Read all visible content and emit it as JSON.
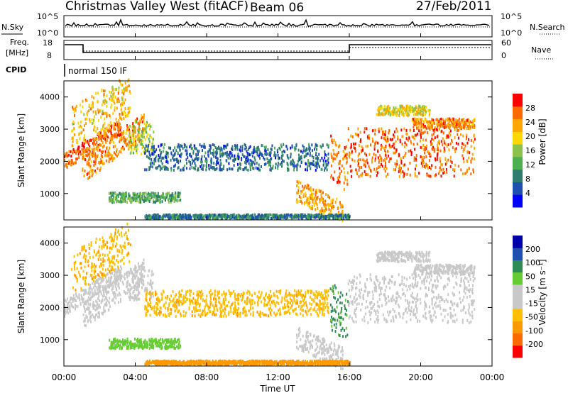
{
  "header": {
    "station": "Christmas Valley West (fitACF)",
    "beam": "Beam 06",
    "date": "27/Feb/2011"
  },
  "top_panel": {
    "left_label": "N.Sky",
    "right_label": "N.Search",
    "left_ticks": [
      "10^5",
      "10^0"
    ],
    "right_ticks": [
      "10^5",
      "10^0"
    ]
  },
  "freq_panel": {
    "left_label_1": "Freq.",
    "left_label_2": "[MHz]",
    "right_label": "Nave",
    "left_ticks": [
      "18",
      "8"
    ],
    "right_ticks": [
      "60",
      "0"
    ]
  },
  "cpid": {
    "label": "CPID",
    "mode": "normal 150 IF"
  },
  "colors": {
    "power": [
      "#0000ff",
      "#1f4fb0",
      "#2e7d6f",
      "#4caf50",
      "#8bc34a",
      "#ffd700",
      "#ffa500",
      "#ff6a00",
      "#ff0000"
    ],
    "velocity": [
      "#ff0000",
      "#ff6a00",
      "#ff9900",
      "#ffbf00",
      "#c8c8c8",
      "#c8c8c8",
      "#66cc33",
      "#2e8b57",
      "#1f4fb0",
      "#0000aa"
    ],
    "ground_scatter": "#c8c8c8"
  },
  "chart_data": [
    {
      "type": "heatmap",
      "name": "power",
      "ylabel": "Slant Range [km]",
      "colorbar_label": "Power [dB]",
      "colorbar_ticks": [
        "28",
        "24",
        "20",
        "16",
        "12",
        "8",
        "4"
      ],
      "xlim": [
        "00:00",
        "24:00"
      ],
      "ylim": [
        180,
        4500
      ],
      "yticks": [
        "1000",
        "2000",
        "3000",
        "4000"
      ],
      "regions": [
        {
          "t0": 0.0,
          "t1": 3.2,
          "r0": 1700,
          "r1": 2200,
          "slope": 350,
          "value": 30
        },
        {
          "t0": 0.4,
          "t1": 3.7,
          "r0": 2400,
          "r1": 3700,
          "slope": 300,
          "value": 24
        },
        {
          "t0": 1.0,
          "t1": 4.5,
          "r0": 1300,
          "r1": 2100,
          "slope": 400,
          "value": 28
        },
        {
          "t0": 3.6,
          "t1": 5.0,
          "r0": 2200,
          "r1": 3200,
          "slope": 0,
          "value": 18
        },
        {
          "t0": 4.5,
          "t1": 14.8,
          "r0": 1700,
          "r1": 2500,
          "slope": 0,
          "value": 8
        },
        {
          "t0": 13.0,
          "t1": 15.6,
          "r0": 700,
          "r1": 1400,
          "slope": -250,
          "value": 26
        },
        {
          "t0": 14.9,
          "t1": 15.9,
          "r0": 1300,
          "r1": 2800,
          "slope": -400,
          "value": 28
        },
        {
          "t0": 15.9,
          "t1": 23.0,
          "r0": 1500,
          "r1": 3000,
          "slope": 0,
          "value": 30
        },
        {
          "t0": 19.5,
          "t1": 23.0,
          "r0": 3000,
          "r1": 3300,
          "slope": 0,
          "value": 28
        },
        {
          "t0": 17.5,
          "t1": 20.5,
          "r0": 3400,
          "r1": 3700,
          "slope": 0,
          "value": 22
        },
        {
          "t0": 2.5,
          "t1": 6.5,
          "r0": 700,
          "r1": 1000,
          "slope": 0,
          "value": 14
        },
        {
          "t0": 4.5,
          "t1": 16.0,
          "r0": 200,
          "r1": 320,
          "slope": 0,
          "value": 10
        }
      ]
    },
    {
      "type": "heatmap",
      "name": "velocity",
      "ylabel": "Slant Range [km]",
      "colorbar_label": "Velocity [m s⁻¹]",
      "colorbar_ticks": [
        "200",
        "100",
        "50",
        "15",
        "-15",
        "-50",
        "-100",
        "-200"
      ],
      "xlim": [
        "00:00",
        "24:00"
      ],
      "ylim": [
        180,
        4500
      ],
      "yticks": [
        "1000",
        "2000",
        "3000",
        "4000"
      ],
      "regions": [
        {
          "t0": 0.0,
          "t1": 3.2,
          "r0": 1700,
          "r1": 2200,
          "slope": 350,
          "value": 0
        },
        {
          "t0": 0.4,
          "t1": 3.7,
          "r0": 2400,
          "r1": 3700,
          "slope": 300,
          "value": -40
        },
        {
          "t0": 1.0,
          "t1": 4.5,
          "r0": 1300,
          "r1": 2100,
          "slope": 400,
          "value": 0
        },
        {
          "t0": 3.6,
          "t1": 5.0,
          "r0": 2200,
          "r1": 3200,
          "slope": 0,
          "value": 0
        },
        {
          "t0": 4.5,
          "t1": 14.8,
          "r0": 1700,
          "r1": 2500,
          "slope": 0,
          "value": -40
        },
        {
          "t0": 13.0,
          "t1": 15.6,
          "r0": 700,
          "r1": 1400,
          "slope": -250,
          "value": 0
        },
        {
          "t0": 14.9,
          "t1": 15.9,
          "r0": 1300,
          "r1": 2800,
          "slope": -400,
          "value": 60
        },
        {
          "t0": 15.9,
          "t1": 23.0,
          "r0": 1500,
          "r1": 3000,
          "slope": 0,
          "value": 0
        },
        {
          "t0": 19.5,
          "t1": 23.0,
          "r0": 3000,
          "r1": 3300,
          "slope": 0,
          "value": 0
        },
        {
          "t0": 17.5,
          "t1": 20.5,
          "r0": 3400,
          "r1": 3700,
          "slope": 0,
          "value": 0
        },
        {
          "t0": 2.5,
          "t1": 6.5,
          "r0": 700,
          "r1": 1000,
          "slope": 0,
          "value": 30
        },
        {
          "t0": 4.5,
          "t1": 16.0,
          "r0": 200,
          "r1": 320,
          "slope": 0,
          "value": -80
        }
      ]
    }
  ],
  "xaxis": {
    "label": "Time UT",
    "ticks": [
      "00:00",
      "04:00",
      "08:00",
      "12:00",
      "16:00",
      "20:00",
      "00:00"
    ]
  }
}
